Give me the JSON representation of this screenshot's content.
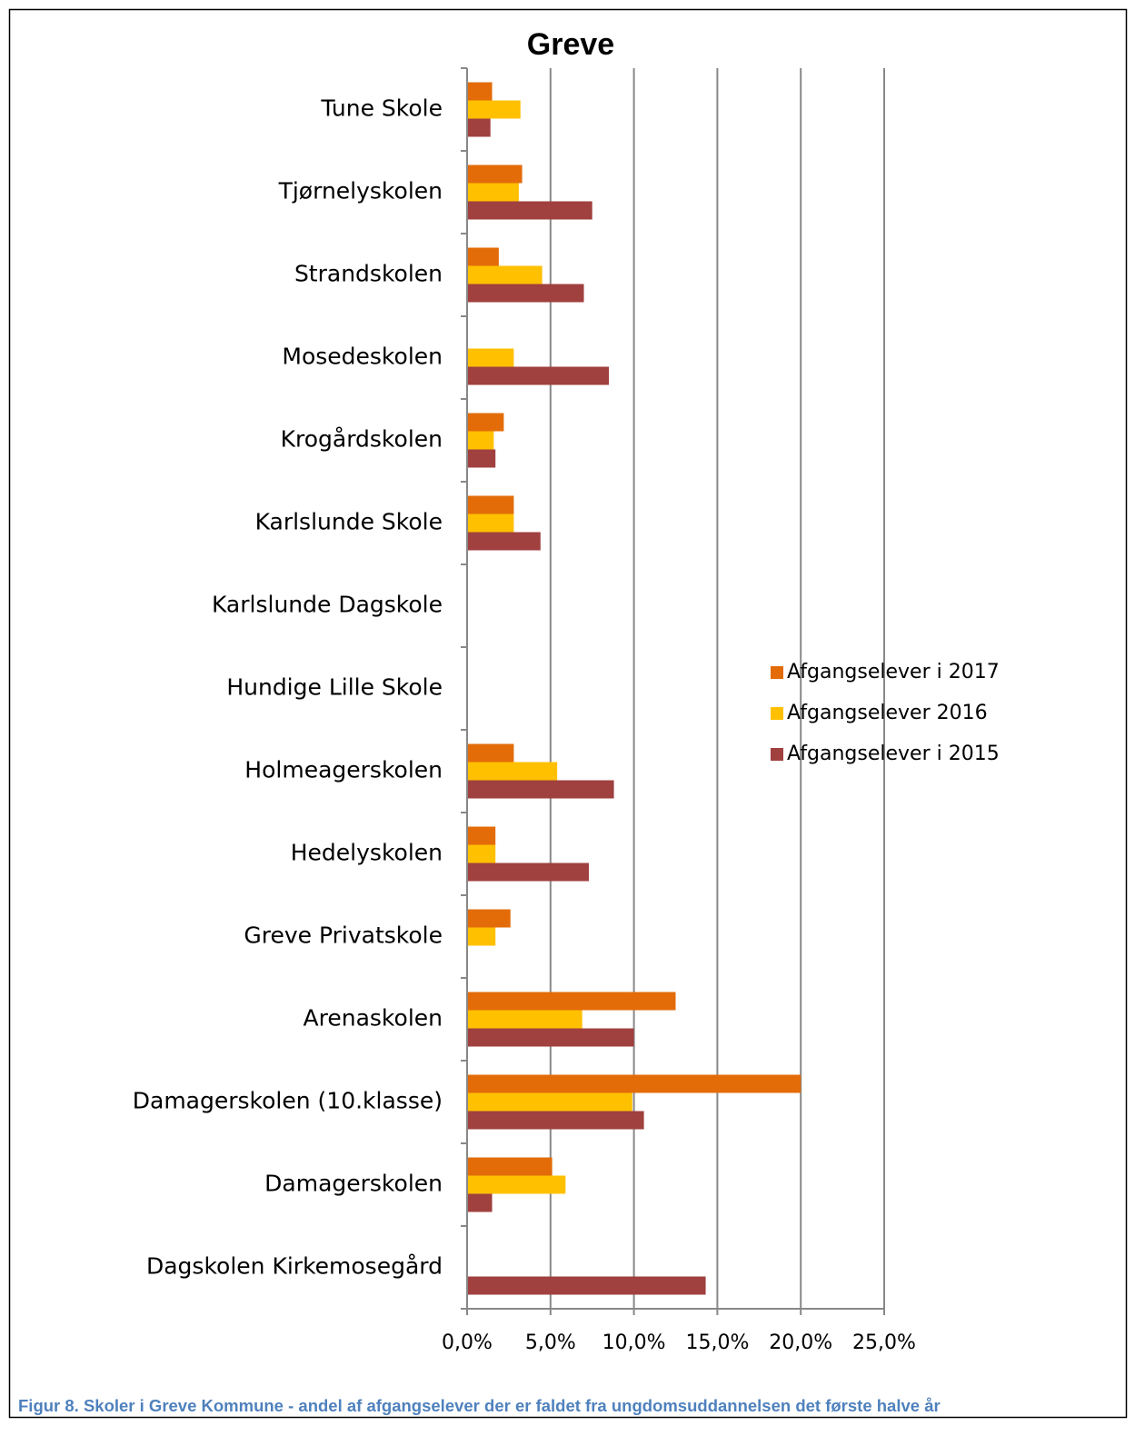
{
  "chart_data": {
    "type": "hbar",
    "title": "Greve",
    "categories": [
      "Tune Skole",
      "Tjørnelyskolen",
      "Strandskolen",
      "Mosedeskolen",
      "Krogårdskolen",
      "Karlslunde Skole",
      "Karlslunde Dagskole",
      "Hundige Lille Skole",
      "Holmeagerskolen",
      "Hedelyskolen",
      "Greve Privatskole",
      "Arenaskolen",
      "Damagerskolen (10.klasse)",
      "Damagerskolen",
      "Dagskolen Kirkemosegård"
    ],
    "series": [
      {
        "name": "Afgangselever i 2017",
        "color": "#e36c09",
        "values": [
          1.5,
          3.3,
          1.9,
          0,
          2.2,
          2.8,
          0,
          0,
          2.8,
          1.7,
          2.6,
          12.5,
          20.0,
          5.1,
          0
        ]
      },
      {
        "name": "Afgangselever 2016",
        "color": "#ffc000",
        "values": [
          3.2,
          3.1,
          4.5,
          2.8,
          1.6,
          2.8,
          0,
          0,
          5.4,
          1.7,
          1.7,
          6.9,
          9.9,
          5.9,
          0
        ]
      },
      {
        "name": "Afgangselever i 2015",
        "color": "#a0403f",
        "values": [
          1.4,
          7.5,
          7.0,
          8.5,
          1.7,
          4.4,
          0,
          0,
          8.8,
          7.3,
          0,
          10.0,
          10.6,
          1.5,
          14.3
        ]
      }
    ],
    "xlim": [
      0,
      25
    ],
    "xticks": [
      {
        "value": 0,
        "label": "0,0%"
      },
      {
        "value": 5,
        "label": "5,0%"
      },
      {
        "value": 10,
        "label": "10,0%"
      },
      {
        "value": 15,
        "label": "15,0%"
      },
      {
        "value": 20,
        "label": "20,0%"
      },
      {
        "value": 25,
        "label": "25,0%"
      }
    ],
    "grid": true,
    "legend": "right",
    "caption": "Figur 8. Skoler i Greve Kommune - andel af afgangselever der er faldet fra ungdomsuddannelsen det første halve år"
  }
}
